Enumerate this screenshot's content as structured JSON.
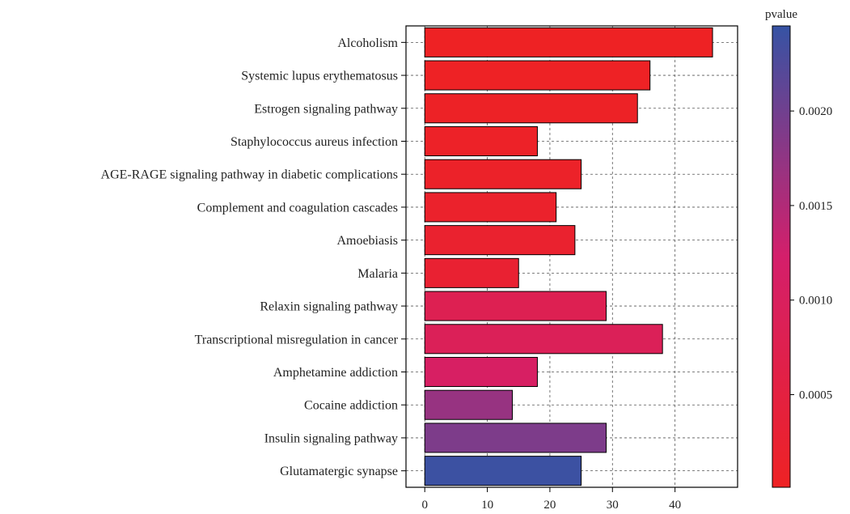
{
  "chart_data": {
    "type": "bar",
    "orientation": "horizontal",
    "title": "",
    "xlabel": "",
    "ylabel": "",
    "categories": [
      "Alcoholism",
      "Systemic lupus erythematosus",
      "Estrogen signaling pathway",
      "Staphylococcus aureus infection",
      "AGE-RAGE signaling pathway in diabetic complications",
      "Complement and coagulation cascades",
      "Amoebiasis",
      "Malaria",
      "Relaxin signaling pathway",
      "Transcriptional misregulation in cancer",
      "Amphetamine addiction",
      "Cocaine addiction",
      "Insulin signaling pathway",
      "Glutamatergic synapse"
    ],
    "values": [
      46,
      36,
      34,
      18,
      25,
      21,
      24,
      15,
      29,
      38,
      18,
      14,
      29,
      25
    ],
    "pvalues": [
      1e-05,
      2e-05,
      5e-05,
      8e-05,
      0.0001,
      0.00015,
      0.0002,
      0.00025,
      0.0008,
      0.0009,
      0.0011,
      0.0017,
      0.0019,
      0.0024
    ],
    "xlim": [
      -3,
      50
    ],
    "xticks": [
      0,
      10,
      20,
      30,
      40
    ],
    "grid": true,
    "bar_edge_color": "#000000",
    "colorbar": {
      "title": "pvalue",
      "range": [
        1e-05,
        0.00245
      ],
      "ticks": [
        0.0005,
        0.001,
        0.0015,
        0.002
      ],
      "tick_labels": [
        "0.0005",
        "0.0010",
        "0.0015",
        "0.0020"
      ],
      "low_color": "#ee2224",
      "high_color": "#3653a4",
      "placement": "right"
    }
  }
}
